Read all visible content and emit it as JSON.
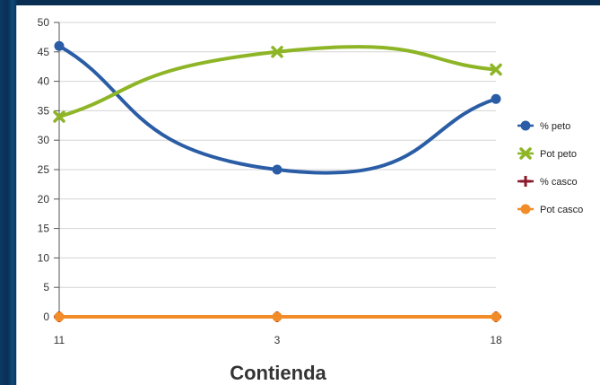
{
  "chart_data": {
    "type": "line",
    "title": "",
    "xlabel": "Contienda",
    "ylabel": "",
    "categories": [
      "11",
      "3",
      "18"
    ],
    "ylim": [
      0,
      50
    ],
    "ytick_step": 5,
    "grid": true,
    "legend_position": "right",
    "series": [
      {
        "name": "% peto",
        "values": [
          46,
          25,
          37
        ],
        "color": "#2a5da5",
        "marker": "circle"
      },
      {
        "name": "Pot peto",
        "values": [
          34,
          45,
          42
        ],
        "color": "#8db526",
        "marker": "x"
      },
      {
        "name": "% casco",
        "values": [
          0,
          0,
          0
        ],
        "color": "#8b1a2c",
        "marker": "plus"
      },
      {
        "name": "Pot casco",
        "values": [
          0,
          0,
          0
        ],
        "color": "#f28c28",
        "marker": "circle"
      }
    ]
  }
}
